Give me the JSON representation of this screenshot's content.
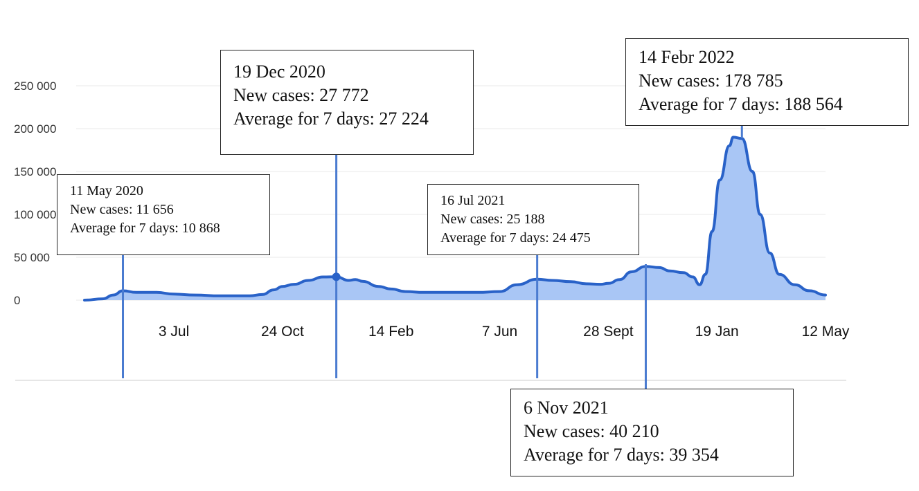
{
  "chart_data": {
    "type": "area",
    "title": "",
    "xlabel": "",
    "ylabel": "",
    "ylim": [
      0,
      250000
    ],
    "y_ticks": [
      "0",
      "50 000",
      "100 000",
      "150 000",
      "200 000",
      "250 000"
    ],
    "y_tick_values": [
      0,
      50000,
      100000,
      150000,
      200000,
      250000
    ],
    "x_ticks": [
      {
        "label": "3 Jul",
        "date": "2020-07-03"
      },
      {
        "label": "24 Oct",
        "date": "2020-10-24"
      },
      {
        "label": "14 Feb",
        "date": "2021-02-14"
      },
      {
        "label": "7 Jun",
        "date": "2021-06-07"
      },
      {
        "label": "28 Sept",
        "date": "2021-09-28"
      },
      {
        "label": "19 Jan",
        "date": "2022-01-19"
      },
      {
        "label": "12 May",
        "date": "2022-05-12"
      }
    ],
    "grid": true,
    "legend": "none",
    "series": [
      {
        "color": "#2962c8",
        "fill": "#a9c6f5",
        "points": [
          [
            "2020-04-01",
            0
          ],
          [
            "2020-04-20",
            1500
          ],
          [
            "2020-05-01",
            6000
          ],
          [
            "2020-05-11",
            10868
          ],
          [
            "2020-05-25",
            9000
          ],
          [
            "2020-06-15",
            9000
          ],
          [
            "2020-07-03",
            7000
          ],
          [
            "2020-07-25",
            6000
          ],
          [
            "2020-08-20",
            5000
          ],
          [
            "2020-09-20",
            5000
          ],
          [
            "2020-10-03",
            6500
          ],
          [
            "2020-10-15",
            12000
          ],
          [
            "2020-10-24",
            16000
          ],
          [
            "2020-11-05",
            18500
          ],
          [
            "2020-11-20",
            23000
          ],
          [
            "2020-12-05",
            27000
          ],
          [
            "2020-12-19",
            27224
          ],
          [
            "2021-01-01",
            23000
          ],
          [
            "2021-01-08",
            24000
          ],
          [
            "2021-01-15",
            22000
          ],
          [
            "2021-02-01",
            16000
          ],
          [
            "2021-02-14",
            13000
          ],
          [
            "2021-03-01",
            10000
          ],
          [
            "2021-03-20",
            9000
          ],
          [
            "2021-04-15",
            9000
          ],
          [
            "2021-05-15",
            9000
          ],
          [
            "2021-06-07",
            10000
          ],
          [
            "2021-06-25",
            18000
          ],
          [
            "2021-07-16",
            24475
          ],
          [
            "2021-08-01",
            23000
          ],
          [
            "2021-08-20",
            21500
          ],
          [
            "2021-09-05",
            19000
          ],
          [
            "2021-09-20",
            18500
          ],
          [
            "2021-09-28",
            19500
          ],
          [
            "2021-10-10",
            24000
          ],
          [
            "2021-10-22",
            33000
          ],
          [
            "2021-11-06",
            39354
          ],
          [
            "2021-11-20",
            38000
          ],
          [
            "2021-12-01",
            34000
          ],
          [
            "2021-12-15",
            32000
          ],
          [
            "2021-12-25",
            27000
          ],
          [
            "2022-01-01",
            18000
          ],
          [
            "2022-01-07",
            30000
          ],
          [
            "2022-01-14",
            80000
          ],
          [
            "2022-01-22",
            140000
          ],
          [
            "2022-02-01",
            180000
          ],
          [
            "2022-02-05",
            190000
          ],
          [
            "2022-02-14",
            188564
          ],
          [
            "2022-02-25",
            150000
          ],
          [
            "2022-03-05",
            100000
          ],
          [
            "2022-03-15",
            55000
          ],
          [
            "2022-03-25",
            30000
          ],
          [
            "2022-04-10",
            18000
          ],
          [
            "2022-04-25",
            11000
          ],
          [
            "2022-05-12",
            6000
          ]
        ]
      }
    ],
    "annotations": [
      {
        "date": "2020-05-11",
        "title": "11 May 2020",
        "new_cases": "New cases: 11 656",
        "average": "Average for 7 days: 10 868"
      },
      {
        "date": "2020-12-19",
        "title": "19 Dec 2020",
        "new_cases": "New cases: 27 772",
        "average": "Average for 7 days: 27 224"
      },
      {
        "date": "2021-07-16",
        "title": "16 Jul 2021",
        "new_cases": "New cases: 25 188",
        "average": "Average for 7 days: 24 475"
      },
      {
        "date": "2021-11-06",
        "title": "6 Nov 2021",
        "new_cases": "New cases: 40 210",
        "average": "Average for 7 days: 39 354"
      },
      {
        "date": "2022-02-14",
        "title": "14 Febr 2022",
        "new_cases": "New cases: 178 785",
        "average": "Average for 7 days: 188 564"
      }
    ]
  }
}
